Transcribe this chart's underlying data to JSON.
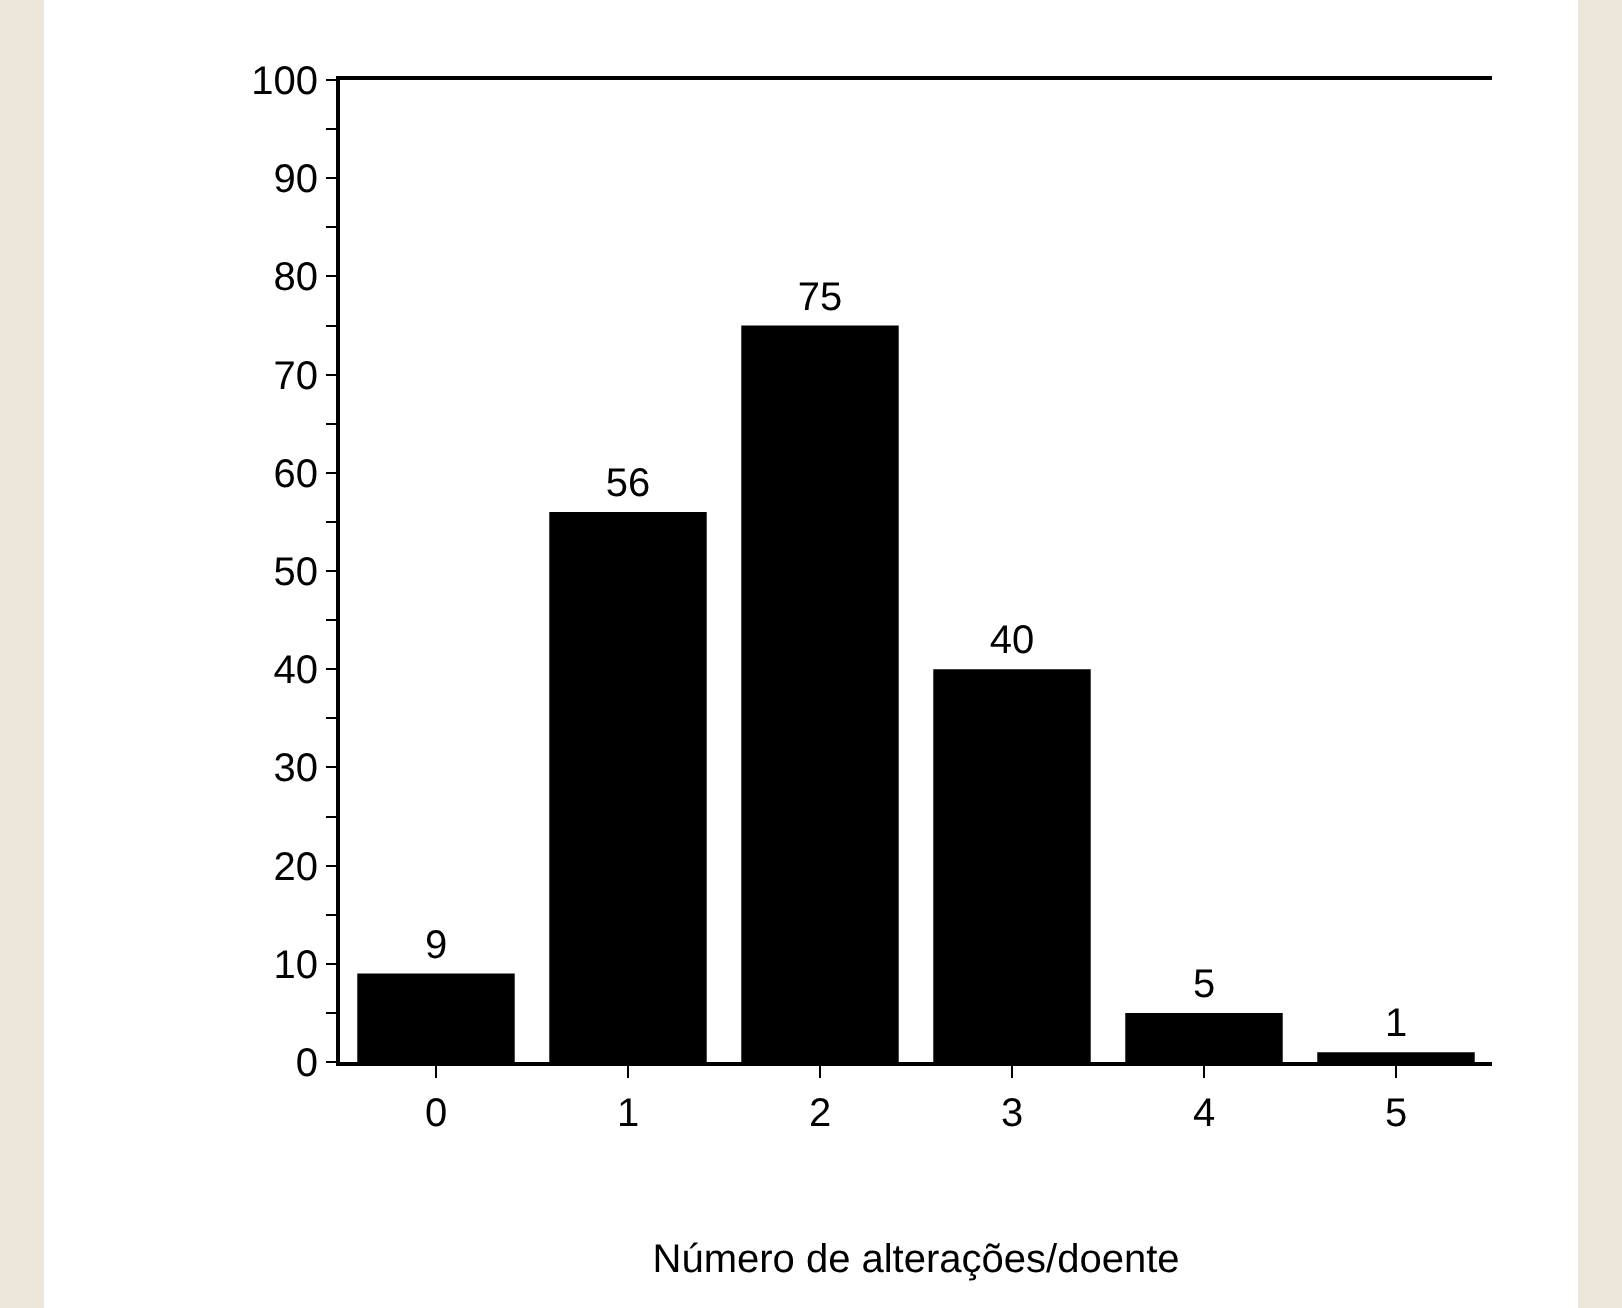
{
  "chart_data": {
    "type": "bar",
    "xlabel": "Número de alterações/doente",
    "categories": [
      "0",
      "1",
      "2",
      "3",
      "4",
      "5"
    ],
    "values": [
      9,
      56,
      75,
      40,
      5,
      1
    ],
    "color": "#000000",
    "data_labels": true,
    "ylim": [
      0,
      100
    ],
    "yticks": [
      0,
      {
        "value": 5,
        "label": null
      },
      10,
      20,
      30,
      40,
      50,
      60,
      70,
      80,
      90,
      100,
      {
        "value": 15,
        "label": null
      },
      {
        "value": 25,
        "label": null
      },
      {
        "value": 35,
        "label": null
      },
      {
        "value": 45,
        "label": null
      },
      {
        "value": 55,
        "label": null
      },
      {
        "value": 65,
        "label": null
      },
      {
        "value": 75,
        "label": null
      },
      {
        "value": 85,
        "label": null
      },
      {
        "value": 95,
        "label": null
      }
    ],
    "grid": false
  }
}
